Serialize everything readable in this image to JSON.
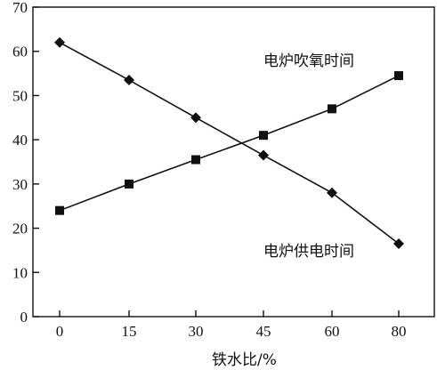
{
  "chart_data": {
    "type": "line",
    "xlabel": "铁水比/%",
    "ylabel": "",
    "xlim": [
      0,
      80
    ],
    "ylim": [
      0,
      70
    ],
    "x_ticks": [
      "0",
      "15",
      "30",
      "45",
      "60",
      "80"
    ],
    "y_ticks": [
      "0",
      "10",
      "20",
      "30",
      "40",
      "50",
      "60",
      "70"
    ],
    "grid": false,
    "series": [
      {
        "name": "电炉吹氧时间",
        "marker": "square",
        "x": [
          0,
          15,
          30,
          45,
          60,
          80
        ],
        "y": [
          24,
          30,
          35.5,
          41,
          47,
          54.5
        ]
      },
      {
        "name": "电炉供电时间",
        "marker": "diamond",
        "x": [
          0,
          15,
          30,
          45,
          60,
          80
        ],
        "y": [
          62,
          53.5,
          45,
          36.5,
          28,
          16.5
        ]
      }
    ]
  }
}
